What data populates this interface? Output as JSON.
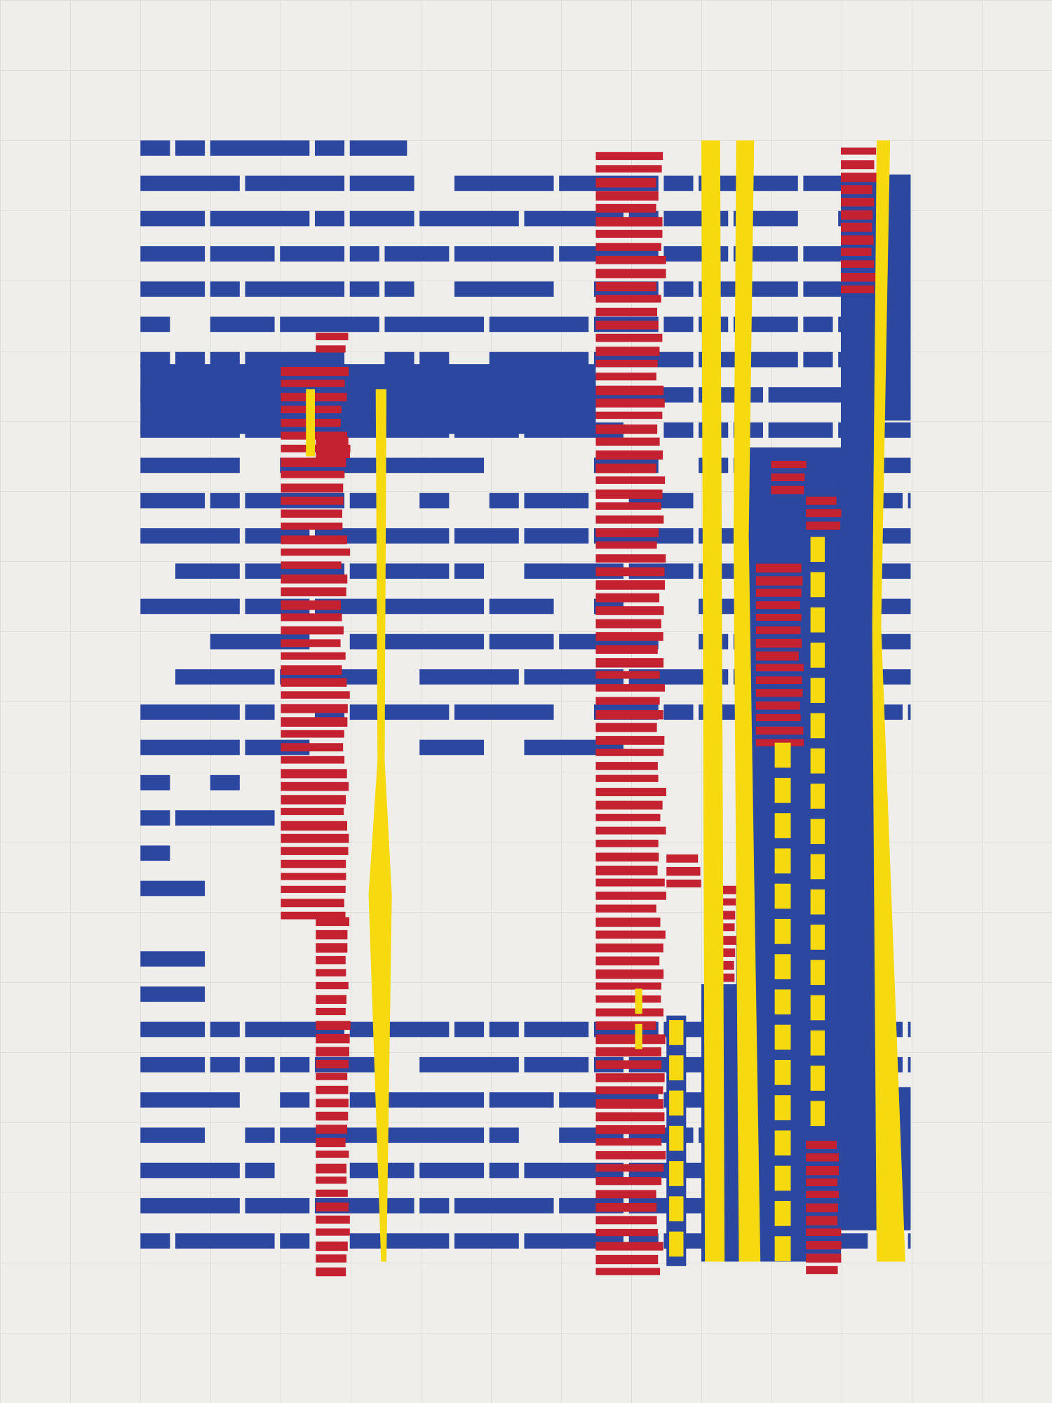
{
  "artwork": {
    "colors": {
      "paper": "#efeeea",
      "grid": "#dcdad4",
      "blue": "#2b47a0",
      "red": "#c42131",
      "yellow": "#f6d90f"
    }
  }
}
